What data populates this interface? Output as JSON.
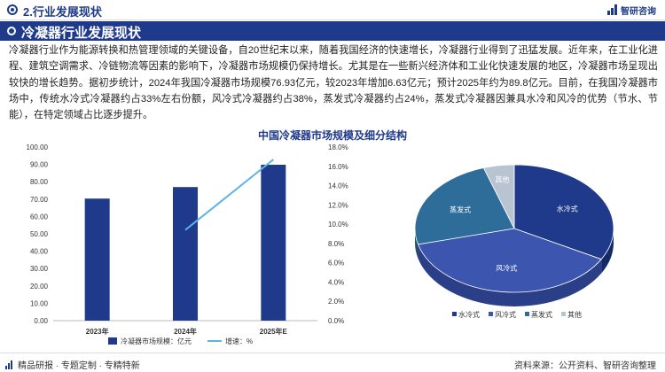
{
  "header": {
    "section_title": "2.行业发展现状",
    "brand": "智研咨询"
  },
  "banner": {
    "title": "冷凝器行业发展现状"
  },
  "paragraph": "冷凝器行业作为能源转换和热管理领域的关键设备，自20世纪末以来，随着我国经济的快速增长，冷凝器行业得到了迅猛发展。近年来，在工业化进程、建筑空调需求、冷链物流等因素的影响下，冷凝器市场规模仍保持增长。尤其是在一些新兴经济体和工业化快速发展的地区，冷凝器市场呈现出较快的增长趋势。据初步统计，2024年我国冷凝器市场规模76.93亿元，较2023年增加6.63亿元；预计2025年约为89.8亿元。目前，在我国冷凝器市场中，传统水冷式冷凝器约占33%左右份额，风冷式冷凝器约占38%，蒸发式冷凝器约占24%，蒸发式冷凝器因兼具水冷和风冷的优势（节水、节能），在特定领域占比逐步提升。",
  "chart_title": "中国冷凝器市场规模及细分结构",
  "chart_data": [
    {
      "type": "bar",
      "categories": [
        "2023年",
        "2024年",
        "2025年E"
      ],
      "series": [
        {
          "name": "冷凝器市场规模：亿元",
          "type": "bar",
          "axis": "left",
          "values": [
            70.3,
            76.93,
            89.8
          ]
        },
        {
          "name": "增速：%",
          "type": "line",
          "axis": "right",
          "values": [
            null,
            9.4,
            16.7
          ]
        }
      ],
      "left_axis": {
        "ylim": [
          0,
          100
        ],
        "ticks": [
          "0.00",
          "10.00",
          "20.00",
          "30.00",
          "40.00",
          "50.00",
          "60.00",
          "70.00",
          "80.00",
          "90.00",
          "100.00"
        ]
      },
      "right_axis": {
        "ylim": [
          0,
          18
        ],
        "ticks": [
          "0.0%",
          "2.0%",
          "4.0%",
          "6.0%",
          "8.0%",
          "10.0%",
          "12.0%",
          "14.0%",
          "16.0%",
          "18.0%"
        ]
      },
      "legend_position": "bottom",
      "colors": {
        "bar": "#1f3a8a",
        "line": "#5ab4e8"
      }
    },
    {
      "type": "pie",
      "labels": [
        "水冷式",
        "风冷式",
        "蒸发式",
        "其他"
      ],
      "values": [
        33,
        38,
        24,
        5
      ],
      "colors": [
        "#1f3a8a",
        "#3c56b0",
        "#2e6d9a",
        "#b9c4d3"
      ],
      "side_colors": [
        "#142a66",
        "#2a3f88",
        "#21506f",
        "#8e9aab"
      ],
      "legend_position": "bottom"
    }
  ],
  "footer": {
    "left": "精品研报 · 专题定制 · 专精特新",
    "right": "资料来源：公开资料、智研咨询整理"
  }
}
